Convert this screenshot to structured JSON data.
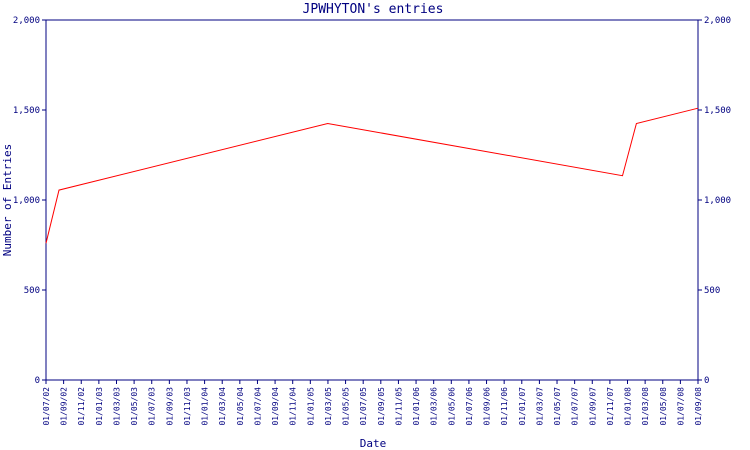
{
  "chart_data": {
    "type": "line",
    "title": "JPWHYTON's entries",
    "xlabel": "Date",
    "ylabel": "Number of Entries",
    "ylim": [
      0,
      2000
    ],
    "yticks": [
      "0",
      "500",
      "1,000",
      "1,500",
      "2,000"
    ],
    "ytick_values": [
      0,
      500,
      1000,
      1500,
      2000
    ],
    "x_tick_labels": [
      "01/07/02",
      "01/09/02",
      "01/11/02",
      "01/01/03",
      "01/03/03",
      "01/05/03",
      "01/07/03",
      "01/09/03",
      "01/11/03",
      "01/01/04",
      "01/03/04",
      "01/05/04",
      "01/07/04",
      "01/09/04",
      "01/11/04",
      "01/01/05",
      "01/03/05",
      "01/05/05",
      "01/07/05",
      "01/09/05",
      "01/11/05",
      "01/01/06",
      "01/03/06",
      "01/05/06",
      "01/07/06",
      "01/09/06",
      "01/11/06",
      "01/01/07",
      "01/03/07",
      "01/05/07",
      "01/07/07",
      "01/09/07",
      "01/11/07",
      "01/01/08",
      "01/03/08",
      "01/05/08",
      "01/07/08",
      "01/09/08"
    ],
    "grid": false,
    "series": [
      {
        "color": "#ff0000",
        "x": [
          "2002-07-01",
          "2002-08-15",
          "2005-03-01",
          "2007-12-15",
          "2008-02-01",
          "2008-09-01"
        ],
        "y": [
          760,
          1055,
          1425,
          1135,
          1425,
          1510
        ]
      }
    ]
  },
  "colors": {
    "axis": "#000080",
    "line": "#ff0000",
    "background": "#ffffff"
  }
}
